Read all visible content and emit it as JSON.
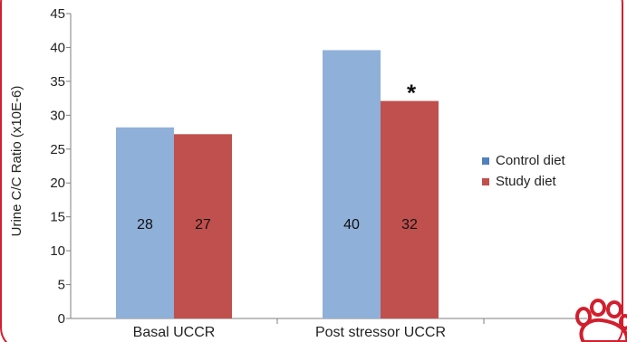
{
  "colors": {
    "frame_border": "#d11f2e",
    "control": "#8fb0d8",
    "study": "#c0504d",
    "logo": "#d11f2e"
  },
  "logo": {
    "icon": "paw-print-logo"
  },
  "chart_data": {
    "type": "bar",
    "title": "",
    "xlabel": "",
    "ylabel": "Urine C/C Ratio (x10E-6)",
    "ylim": [
      0,
      45
    ],
    "yticks": [
      0,
      5,
      10,
      15,
      20,
      25,
      30,
      35,
      40,
      45
    ],
    "grid": false,
    "legend_position": "right",
    "categories": [
      "Basal UCCR",
      "Post stressor UCCR"
    ],
    "series": [
      {
        "name": "Control diet",
        "values": [
          28.2,
          39.6
        ],
        "labels": [
          "28",
          "40"
        ],
        "color": "#8fb0d8",
        "legend_color": "#4f81bd"
      },
      {
        "name": "Study diet",
        "values": [
          27.2,
          32.1
        ],
        "labels": [
          "27",
          "32"
        ],
        "color": "#c0504d",
        "legend_color": "#c0504d"
      }
    ],
    "annotations": [
      {
        "text": "*",
        "category_index": 1,
        "series_index": 1
      }
    ]
  }
}
